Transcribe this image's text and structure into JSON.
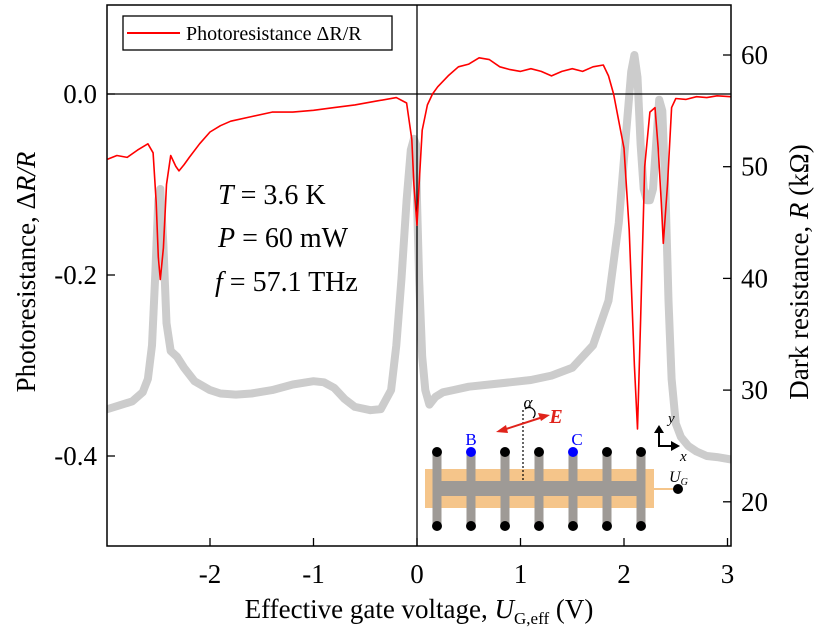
{
  "chart_data": {
    "type": "line",
    "title": "",
    "xlabel": "Effective gate voltage, U_G,eff (V)",
    "xlabel_main": "Effective gate voltage, ",
    "xlabel_var": "U",
    "xlabel_sub": "G,eff",
    "xlabel_unit": " (V)",
    "ylabel": "Photoresistance, ΔR/R",
    "ylabel_main": "Photoresistance, Δ",
    "ylabel_var": "R/R",
    "y2label": "Dark resistance, R (kΩ)",
    "y2label_main": "Dark resistance, ",
    "y2label_var": "R",
    "y2label_unit": " (kΩ)",
    "xlim": [
      -3.0,
      3.03
    ],
    "ylim": [
      -0.5,
      0.1
    ],
    "y2lim": [
      16.3,
      64.6
    ],
    "xticks": [
      "-2",
      "-1",
      "0",
      "1",
      "2",
      "3"
    ],
    "xtick_values": [
      -2,
      -1,
      0,
      1,
      2,
      3
    ],
    "yticks": [
      "0.0",
      "-0.2",
      "-0.4"
    ],
    "ytick_values": [
      0.0,
      -0.2,
      -0.4
    ],
    "y2ticks": [
      "60",
      "50",
      "40",
      "30",
      "20"
    ],
    "y2tick_values": [
      60,
      50,
      40,
      30,
      20
    ],
    "legend": {
      "position": "upper-left",
      "entries": [
        {
          "label": "Photoresistance ΔR/R",
          "color": "#ff0000"
        }
      ]
    },
    "annotations": [
      "T = 3.6 K",
      "P = 60 mW",
      "f = 57.1 THz"
    ],
    "series": [
      {
        "name": "Photoresistance ΔR/R",
        "axis": "left",
        "color": "#ff0000",
        "x": [
          -2.99,
          -2.9,
          -2.8,
          -2.7,
          -2.6,
          -2.55,
          -2.52,
          -2.5,
          -2.48,
          -2.45,
          -2.42,
          -2.38,
          -2.33,
          -2.3,
          -2.25,
          -2.2,
          -2.1,
          -2.0,
          -1.9,
          -1.8,
          -1.6,
          -1.4,
          -1.2,
          -1.0,
          -0.8,
          -0.6,
          -0.4,
          -0.2,
          -0.1,
          -0.05,
          -0.03,
          0.0,
          0.02,
          0.05,
          0.1,
          0.15,
          0.2,
          0.3,
          0.4,
          0.5,
          0.6,
          0.7,
          0.8,
          0.9,
          1.0,
          1.1,
          1.2,
          1.3,
          1.4,
          1.5,
          1.6,
          1.7,
          1.8,
          1.85,
          1.9,
          1.95,
          2.0,
          2.05,
          2.1,
          2.13,
          2.16,
          2.2,
          2.25,
          2.3,
          2.33,
          2.36,
          2.38,
          2.42,
          2.46,
          2.5,
          2.6,
          2.7,
          2.8,
          2.9,
          3.03
        ],
        "values": [
          -0.072,
          -0.068,
          -0.07,
          -0.062,
          -0.055,
          -0.065,
          -0.12,
          -0.18,
          -0.205,
          -0.17,
          -0.1,
          -0.068,
          -0.08,
          -0.085,
          -0.078,
          -0.07,
          -0.055,
          -0.042,
          -0.035,
          -0.03,
          -0.025,
          -0.02,
          -0.02,
          -0.018,
          -0.015,
          -0.012,
          -0.008,
          -0.004,
          -0.01,
          -0.05,
          -0.1,
          -0.145,
          -0.1,
          -0.04,
          -0.012,
          0.0,
          0.008,
          0.02,
          0.03,
          0.033,
          0.04,
          0.038,
          0.03,
          0.027,
          0.025,
          0.028,
          0.025,
          0.02,
          0.025,
          0.028,
          0.025,
          0.03,
          0.032,
          0.02,
          0.0,
          -0.03,
          -0.06,
          -0.15,
          -0.3,
          -0.37,
          -0.25,
          -0.08,
          -0.02,
          -0.015,
          -0.06,
          -0.12,
          -0.165,
          -0.1,
          -0.015,
          -0.005,
          -0.006,
          -0.003,
          -0.004,
          -0.002,
          -0.003
        ]
      },
      {
        "name": "Dark resistance R",
        "axis": "right",
        "color": "#cccccc",
        "x": [
          -2.99,
          -2.85,
          -2.75,
          -2.65,
          -2.6,
          -2.56,
          -2.53,
          -2.5,
          -2.48,
          -2.45,
          -2.42,
          -2.38,
          -2.32,
          -2.25,
          -2.15,
          -2.0,
          -1.9,
          -1.75,
          -1.6,
          -1.4,
          -1.2,
          -1.0,
          -0.9,
          -0.8,
          -0.7,
          -0.6,
          -0.45,
          -0.35,
          -0.25,
          -0.2,
          -0.15,
          -0.1,
          -0.06,
          -0.03,
          -0.01,
          0.0,
          0.02,
          0.05,
          0.08,
          0.12,
          0.18,
          0.25,
          0.35,
          0.5,
          0.7,
          0.9,
          1.1,
          1.3,
          1.5,
          1.7,
          1.85,
          1.95,
          2.02,
          2.07,
          2.1,
          2.13,
          2.16,
          2.19,
          2.22,
          2.25,
          2.28,
          2.31,
          2.34,
          2.37,
          2.4,
          2.43,
          2.46,
          2.5,
          2.55,
          2.62,
          2.7,
          2.8,
          2.9,
          3.03
        ],
        "values": [
          28.3,
          28.7,
          29.0,
          29.8,
          31.0,
          34.0,
          40.0,
          47.0,
          48.0,
          43.0,
          36.0,
          33.5,
          33.0,
          32.0,
          30.8,
          30.0,
          29.7,
          29.6,
          29.7,
          30.0,
          30.5,
          30.8,
          30.7,
          30.2,
          29.2,
          28.5,
          28.2,
          28.3,
          30.0,
          34.0,
          40.0,
          47.0,
          51.5,
          52.5,
          52.0,
          47.0,
          40.0,
          33.0,
          30.0,
          28.7,
          29.4,
          29.8,
          30.0,
          30.3,
          30.5,
          30.7,
          30.9,
          31.3,
          32.0,
          34.0,
          38.0,
          45.0,
          53.0,
          58.5,
          60.0,
          58.0,
          52.0,
          48.0,
          47.0,
          47.0,
          48.0,
          52.0,
          56.0,
          55.0,
          48.0,
          38.0,
          31.0,
          27.0,
          25.8,
          25.0,
          24.5,
          24.1,
          24.0,
          23.8
        ]
      }
    ],
    "inset": {
      "labels": {
        "B": "B",
        "C": "C",
        "alpha": "α",
        "E": "E",
        "x_axis": "x",
        "y_axis": "y",
        "gate_var": "U",
        "gate_sub": "G"
      },
      "colors": {
        "gate": "#f5c58a",
        "contact": "#9e9a96",
        "dot": "#000000",
        "probe": "#0000ff",
        "field": "#e0231b"
      }
    }
  }
}
